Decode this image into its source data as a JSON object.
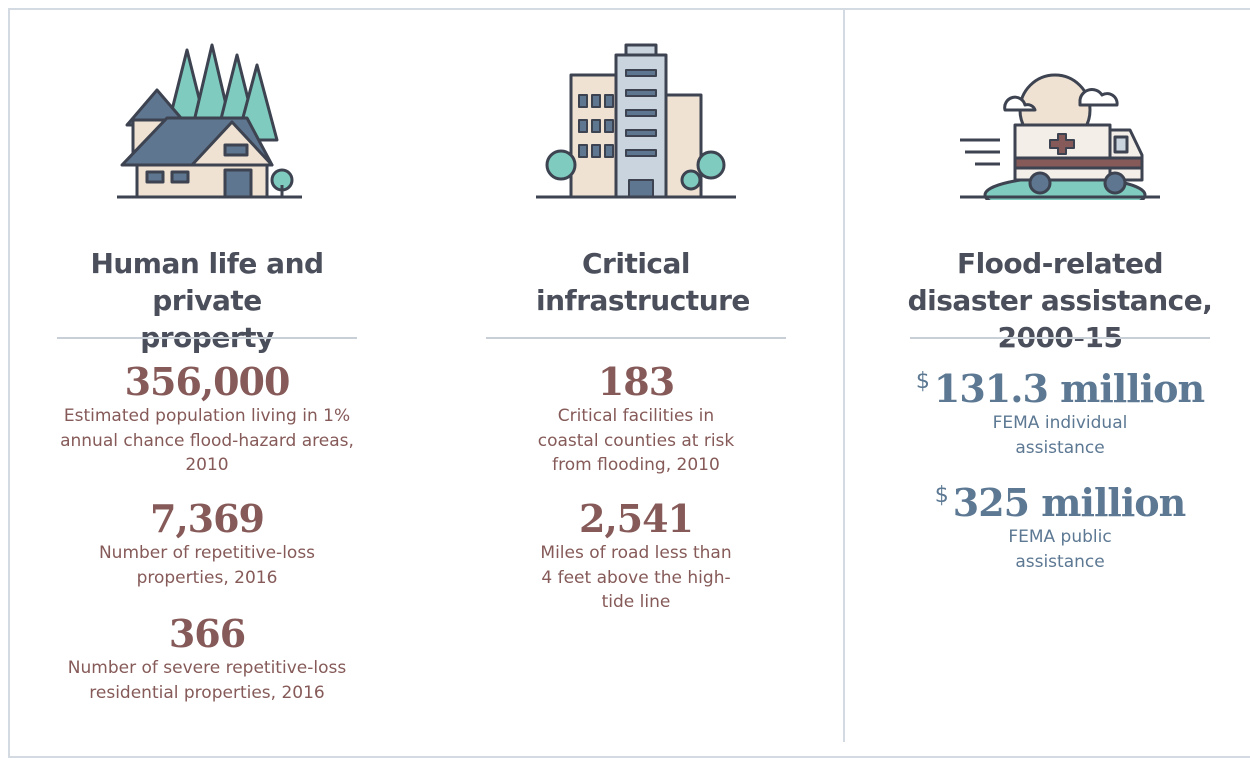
{
  "columns": [
    {
      "title": "Human life and private property",
      "stats": [
        {
          "value": "356,000",
          "description": "Estimated population living in 1% annual chance flood-hazard areas, 2010"
        },
        {
          "value": "7,369",
          "description": "Number of repetitive-loss properties, 2016"
        },
        {
          "value": "366",
          "description": "Number of severe repetitive-loss residential properties, 2016"
        }
      ]
    },
    {
      "title": "Critical infrastructure",
      "stats": [
        {
          "value": "183",
          "description": "Critical facilities in coastal counties at risk from flooding, 2010"
        },
        {
          "value": "2,541",
          "description": "Miles of road less than 4 feet above the high-tide line"
        }
      ]
    },
    {
      "title": "Flood-related disaster assistance, 2000-15",
      "stats": [
        {
          "currency": "$",
          "value": "131.3 million",
          "description": "FEMA individual assistance"
        },
        {
          "currency": "$",
          "value": "325 million",
          "description": "FEMA public assistance"
        }
      ]
    }
  ]
}
